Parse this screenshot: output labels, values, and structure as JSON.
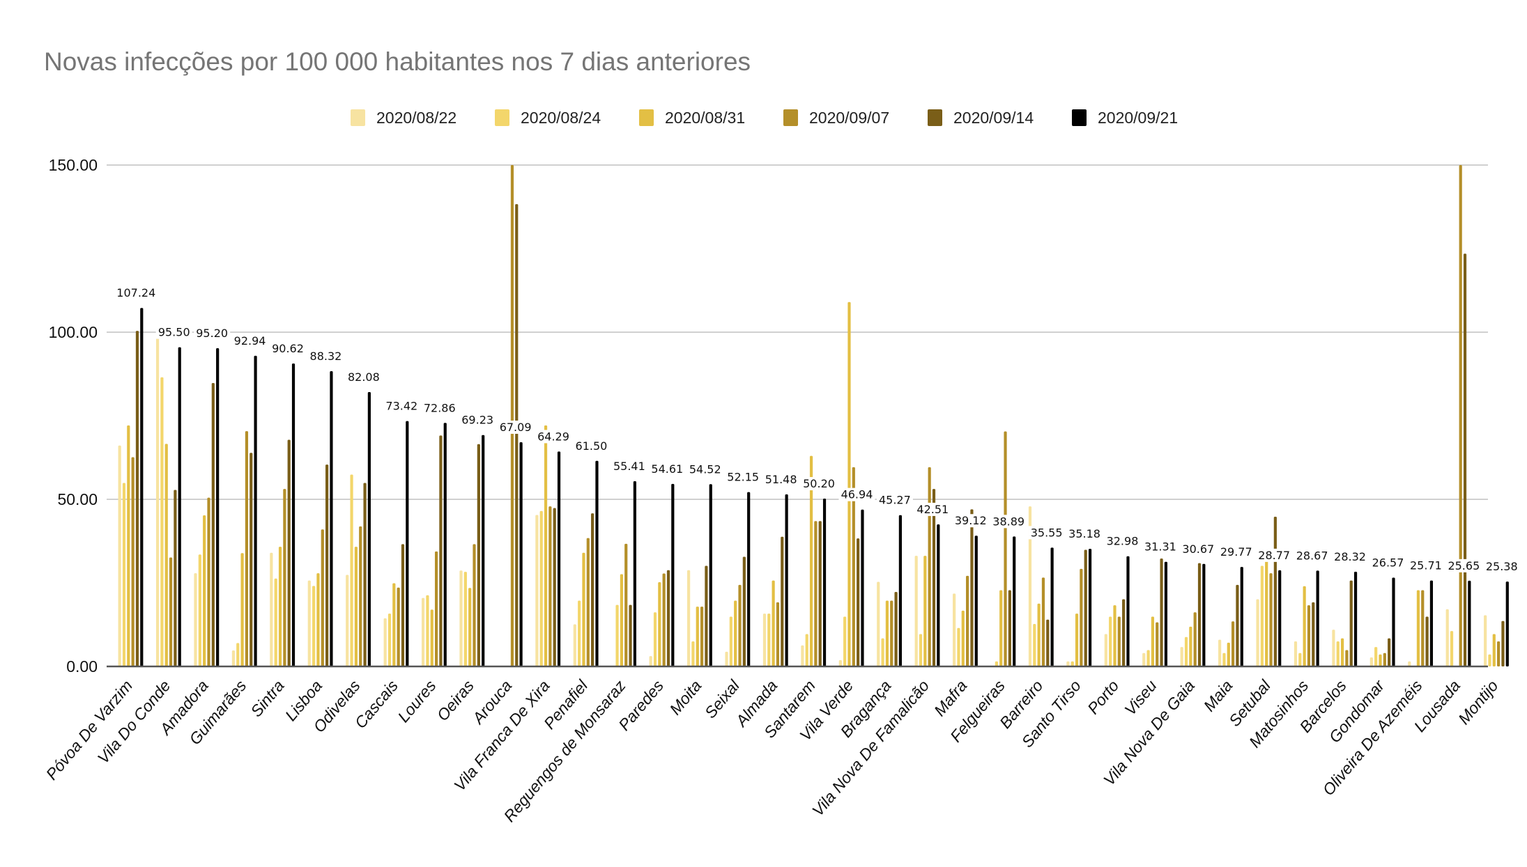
{
  "chart_data": {
    "type": "bar",
    "title": "Novas infecções por 100 000 habitantes nos 7 dias anteriores",
    "xlabel": "",
    "ylabel": "",
    "ylim": [
      0,
      150
    ],
    "yticks": [
      "0.00",
      "50.00",
      "100.00",
      "150.00"
    ],
    "ytick_values": [
      0,
      50,
      100,
      150
    ],
    "grid": true,
    "legend_position": "top-center",
    "data_labels_series": "2020/09/21",
    "categories": [
      "Póvoa De Varzim",
      "Vila Do Conde",
      "Amadora",
      "Guimarães",
      "Sintra",
      "Lisboa",
      "Odivelas",
      "Cascais",
      "Loures",
      "Oeiras",
      "Arouca",
      "Vila Franca De Xira",
      "Penafiel",
      "Reguengos de Monsaraz",
      "Paredes",
      "Moita",
      "Seixal",
      "Almada",
      "Santarem",
      "Vila Verde",
      "Bragança",
      "Vila Nova De Famalicão",
      "Mafra",
      "Felgueiras",
      "Barreiro",
      "Santo Tirso",
      "Porto",
      "Viseu",
      "Vila Nova De Gaia",
      "Maia",
      "Setubal",
      "Matosinhos",
      "Barcelos",
      "Gondomar",
      "Oliveira De Azeméis",
      "Lousada",
      "Montijo"
    ],
    "series": [
      {
        "name": "2020/08/22",
        "color": "#f7e3a1",
        "values": [
          66.1,
          100.4,
          27.9,
          4.8,
          34.0,
          25.7,
          27.4,
          14.4,
          20.5,
          28.7,
          0,
          45.3,
          12.6,
          0,
          3.1,
          28.8,
          4.4,
          15.8,
          6.3,
          1.9,
          25.3,
          33.1,
          21.8,
          0,
          47.9,
          1.5,
          9.7,
          4.0,
          5.8,
          8.0,
          20.1,
          7.5,
          11.0,
          2.7,
          1.5,
          17.1,
          15.3
        ]
      },
      {
        "name": "2020/08/24",
        "color": "#f3d66b",
        "values": [
          54.9,
          86.5,
          33.5,
          7.0,
          26.3,
          24.1,
          57.4,
          15.8,
          21.3,
          28.3,
          0,
          46.5,
          19.7,
          18.4,
          16.2,
          7.5,
          14.9,
          15.8,
          9.7,
          14.9,
          8.4,
          9.7,
          11.5,
          1.5,
          12.7,
          1.5,
          14.9,
          4.9,
          8.8,
          4.0,
          30.1,
          4.0,
          7.5,
          5.8,
          0,
          10.6,
          3.6
        ]
      },
      {
        "name": "2020/08/31",
        "color": "#e3bf44",
        "values": [
          72.1,
          66.6,
          45.2,
          33.9,
          35.8,
          27.9,
          35.8,
          24.9,
          17.0,
          23.5,
          0,
          72.1,
          34.0,
          27.6,
          25.2,
          17.9,
          19.7,
          25.7,
          63.0,
          109.0,
          19.7,
          33.1,
          16.7,
          22.8,
          18.8,
          15.8,
          18.3,
          14.9,
          11.9,
          7.1,
          32.3,
          24.0,
          8.4,
          3.6,
          22.8,
          0,
          9.7
        ]
      },
      {
        "name": "2020/09/07",
        "color": "#b48f29",
        "values": [
          62.6,
          32.6,
          50.5,
          70.4,
          53.1,
          41.0,
          41.9,
          23.6,
          34.4,
          36.6,
          150.0,
          47.9,
          38.4,
          36.7,
          27.8,
          17.9,
          24.4,
          19.2,
          43.5,
          59.6,
          19.7,
          59.6,
          27.1,
          70.3,
          26.6,
          29.2,
          14.9,
          13.2,
          16.2,
          13.5,
          27.9,
          18.3,
          4.9,
          4.0,
          22.8,
          150.0,
          7.5
        ]
      },
      {
        "name": "2020/09/14",
        "color": "#7a5e18",
        "values": [
          100.4,
          52.8,
          84.8,
          63.9,
          67.8,
          60.4,
          54.9,
          36.6,
          69.1,
          66.5,
          138.3,
          47.4,
          45.8,
          18.4,
          28.8,
          30.1,
          32.8,
          38.8,
          43.5,
          38.3,
          22.3,
          53.1,
          47.0,
          22.8,
          14.0,
          34.9,
          20.1,
          32.3,
          30.9,
          24.4,
          44.8,
          19.2,
          25.7,
          8.4,
          14.9,
          123.5,
          13.6
        ]
      },
      {
        "name": "2020/09/21",
        "color": "#000000",
        "values": [
          107.24,
          95.5,
          95.2,
          92.94,
          90.62,
          88.32,
          82.08,
          73.42,
          72.86,
          69.23,
          67.09,
          64.29,
          61.5,
          55.41,
          54.61,
          54.52,
          52.15,
          51.48,
          50.2,
          46.94,
          45.27,
          42.51,
          39.12,
          38.89,
          35.55,
          35.18,
          32.98,
          31.31,
          30.67,
          29.77,
          28.77,
          28.67,
          28.32,
          26.57,
          25.71,
          25.65,
          25.38
        ]
      }
    ],
    "data_labels": [
      "107.24",
      "95.50",
      "95.20",
      "92.94",
      "90.62",
      "88.32",
      "82.08",
      "73.42",
      "72.86",
      "69.23",
      "67.09",
      "64.29",
      "61.50",
      "55.41",
      "54.61",
      "54.52",
      "52.15",
      "51.48",
      "50.20",
      "46.94",
      "45.27",
      "42.51",
      "39.12",
      "38.89",
      "35.55",
      "35.18",
      "32.98",
      "31.31",
      "30.67",
      "29.77",
      "28.77",
      "28.67",
      "28.32",
      "26.57",
      "25.71",
      "25.65",
      "25.38"
    ]
  },
  "colors": {
    "title": "#757575",
    "gridline": "#d0d0d0",
    "baseline": "#555555",
    "text": "#111111"
  }
}
